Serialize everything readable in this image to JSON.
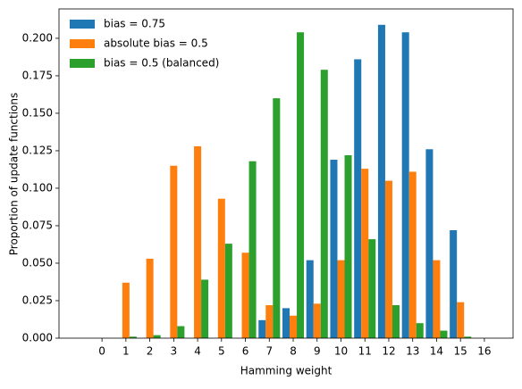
{
  "chart_data": {
    "type": "bar",
    "x_label": "Hamming weight",
    "y_label": "Proportion of update functions",
    "x": [
      0,
      1,
      2,
      3,
      4,
      5,
      6,
      7,
      8,
      9,
      10,
      11,
      12,
      13,
      14,
      15,
      16
    ],
    "series": [
      {
        "name": "bias = 0.75",
        "color": "#1f77b4",
        "values": [
          0,
          0,
          0,
          0,
          0,
          0,
          0,
          0.012,
          0.02,
          0.052,
          0.119,
          0.186,
          0.209,
          0.204,
          0.126,
          0.072,
          0
        ]
      },
      {
        "name": "absolute bias = 0.5",
        "color": "#ff7f0e",
        "values": [
          0,
          0.037,
          0.053,
          0.115,
          0.128,
          0.093,
          0.057,
          0.022,
          0.015,
          0.023,
          0.052,
          0.113,
          0.105,
          0.111,
          0.052,
          0.024,
          0
        ]
      },
      {
        "name": "bias = 0.5 (balanced)",
        "color": "#2ca02c",
        "values": [
          0,
          0.001,
          0.002,
          0.008,
          0.039,
          0.063,
          0.118,
          0.16,
          0.204,
          0.179,
          0.122,
          0.066,
          0.022,
          0.01,
          0.005,
          0.001,
          0
        ]
      }
    ],
    "xlim": [
      -1.8,
      17.2
    ],
    "xticks": [
      0,
      1,
      2,
      3,
      4,
      5,
      6,
      7,
      8,
      9,
      10,
      11,
      12,
      13,
      14,
      15,
      16
    ],
    "ylim": [
      0,
      0.2196
    ],
    "yticks": [
      {
        "value": 0,
        "label": "0.000"
      },
      {
        "value": 0.025,
        "label": "0.025"
      },
      {
        "value": 0.05,
        "label": "0.050"
      },
      {
        "value": 0.075,
        "label": "0.075"
      },
      {
        "value": 0.1,
        "label": "0.100"
      },
      {
        "value": 0.125,
        "label": "0.125"
      },
      {
        "value": 0.15,
        "label": "0.150"
      },
      {
        "value": 0.175,
        "label": "0.175"
      },
      {
        "value": 0.2,
        "label": "0.200"
      }
    ],
    "grid": false,
    "legend": "upper left"
  }
}
